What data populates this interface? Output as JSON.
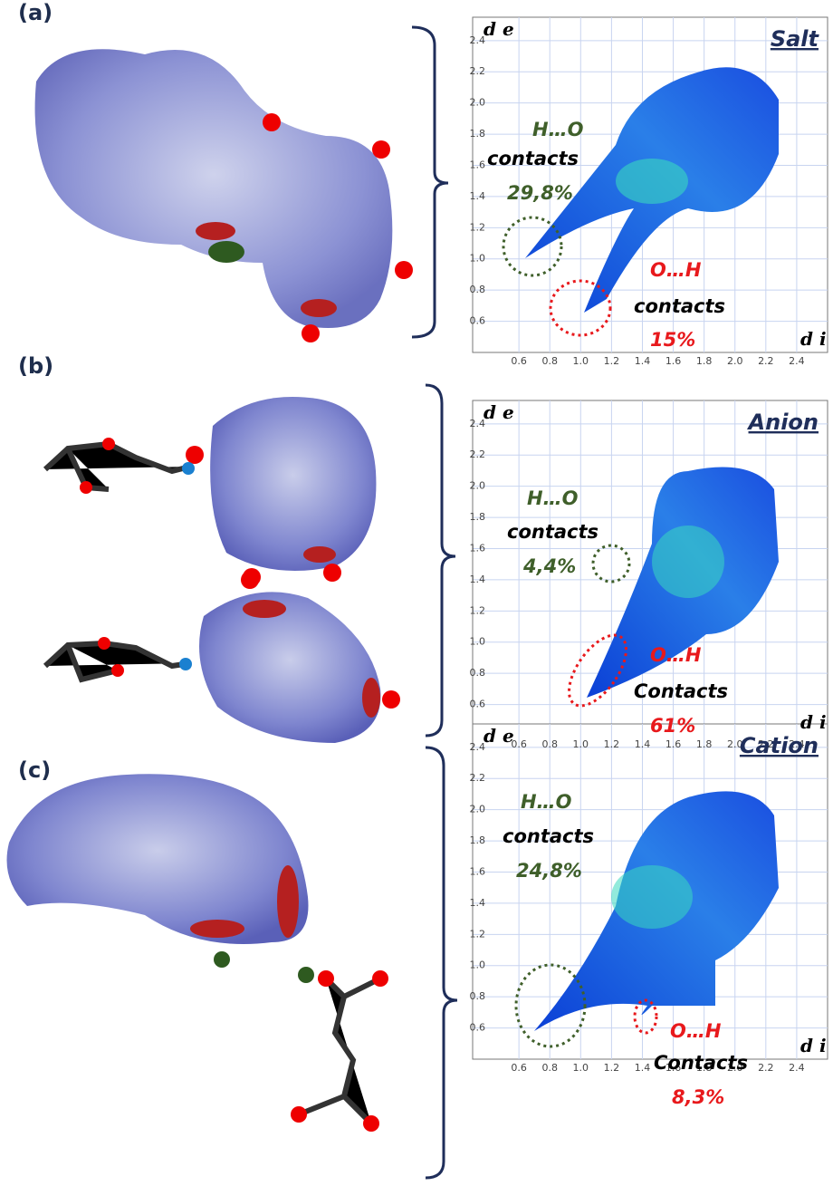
{
  "panels": [
    {
      "label": "(a)",
      "plot": {
        "title": "Salt",
        "y_axis_label": "d e",
        "x_axis_label": "d i",
        "xlim": [
          0.3,
          2.6
        ],
        "ylim": [
          0.4,
          2.55
        ],
        "xticks": [
          0.6,
          0.8,
          {
            "value": 1,
            "label": "1.0"
          },
          1.2,
          1.4,
          1.6,
          1.8,
          {
            "value": 2,
            "label": "2.0"
          },
          2.2,
          2.4
        ],
        "yticks": [
          0.6,
          0.8,
          {
            "value": 1,
            "label": "1.0"
          },
          1.2,
          1.4,
          1.6,
          1.8,
          {
            "value": 2,
            "label": "2.0"
          },
          2.2,
          2.4
        ],
        "annotations": [
          "H…O",
          "contacts",
          "29,8%",
          "O…H",
          "contacts",
          "15%"
        ]
      }
    },
    {
      "label": "(b)",
      "plot": {
        "title": "Anion",
        "y_axis_label": "d e",
        "x_axis_label": "d i",
        "xlim": [
          0.3,
          2.6
        ],
        "ylim": [
          0.4,
          2.55
        ],
        "xticks": [
          0.6,
          0.8,
          {
            "value": 1,
            "label": "1.0"
          },
          1.2,
          1.4,
          1.6,
          1.8,
          {
            "value": 2,
            "label": "2.0"
          },
          2.2,
          2.4
        ],
        "yticks": [
          0.6,
          0.8,
          {
            "value": 1,
            "label": "1.0"
          },
          1.2,
          1.4,
          1.6,
          1.8,
          {
            "value": 2,
            "label": "2.0"
          },
          2.2,
          2.4
        ],
        "annotations": [
          "H…O",
          "contacts",
          "4,4%",
          "O…H",
          "Contacts",
          "61%"
        ]
      }
    },
    {
      "label": "(c)",
      "plot": {
        "title": "Cation",
        "y_axis_label": "d e",
        "x_axis_label": "d i",
        "xlim": [
          0.3,
          2.6
        ],
        "ylim": [
          0.4,
          2.55
        ],
        "xticks": [
          0.6,
          0.8,
          {
            "value": 1,
            "label": "1.0"
          },
          1.2,
          1.4,
          1.6,
          1.8,
          {
            "value": 2,
            "label": "2.0"
          },
          2.2,
          2.4
        ],
        "yticks": [
          0.6,
          0.8,
          {
            "value": 1,
            "label": "1.0"
          },
          1.2,
          1.4,
          1.6,
          1.8,
          {
            "value": 2,
            "label": "2.0"
          },
          2.2,
          2.4
        ],
        "annotations": [
          "H…O",
          "contacts",
          "24,8%",
          "O…H",
          "Contacts",
          "8,3%"
        ]
      }
    }
  ]
}
